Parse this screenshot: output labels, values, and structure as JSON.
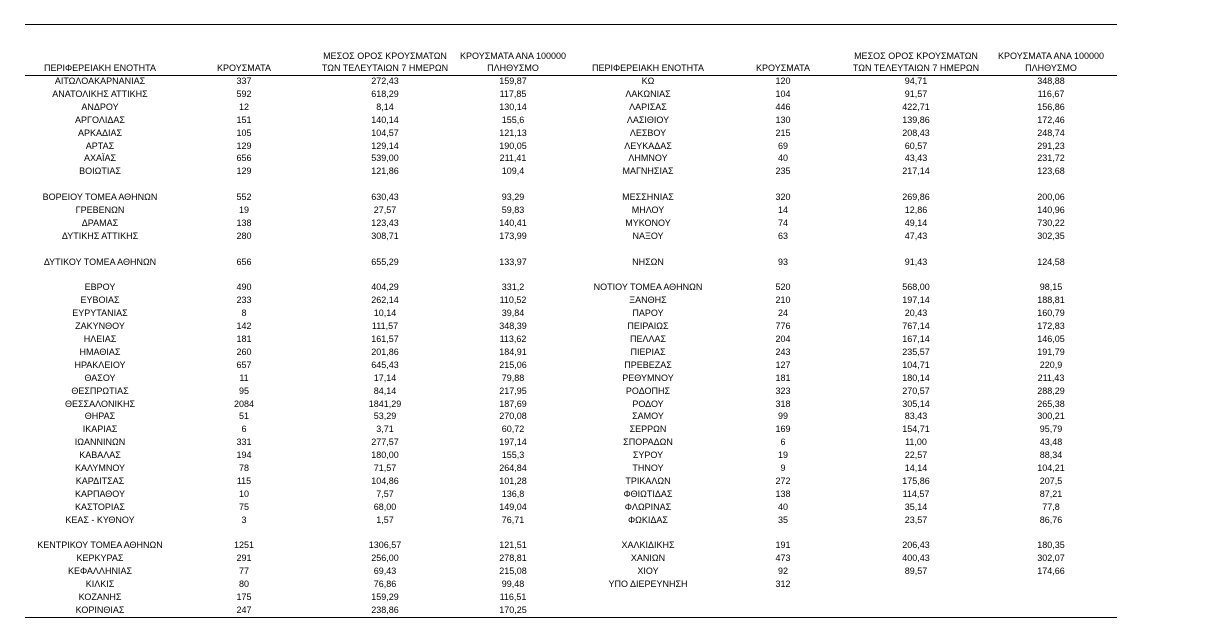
{
  "left": {
    "headers": [
      [
        "ΠΕΡΙΦΕΡΕΙΑΚΗ ΕΝΟΤΗΤΑ"
      ],
      [
        "ΚΡΟΥΣΜΑΤΑ"
      ],
      [
        "ΜΕΣΟΣ ΟΡΟΣ ΚΡΟΥΣΜΑΤΩΝ",
        "ΤΩΝ ΤΕΛΕΥΤΑΙΩΝ 7 ΗΜΕΡΩΝ"
      ],
      [
        "ΚΡΟΥΣΜΑΤΑ ΑΝΑ 100000",
        "ΠΛΗΘΥΣΜΟ"
      ]
    ],
    "groups": [
      [
        [
          "ΑΙΤΩΛΟΑΚΑΡΝΑΝΙΑΣ",
          "337",
          "272,43",
          "159,87"
        ],
        [
          "ΑΝΑΤΟΛΙΚΗΣ ΑΤΤΙΚΗΣ",
          "592",
          "618,29",
          "117,85"
        ],
        [
          "ΑΝΔΡΟΥ",
          "12",
          "8,14",
          "130,14"
        ],
        [
          "ΑΡΓΟΛΙΔΑΣ",
          "151",
          "140,14",
          "155,6"
        ],
        [
          "ΑΡΚΑΔΙΑΣ",
          "105",
          "104,57",
          "121,13"
        ],
        [
          "ΑΡΤΑΣ",
          "129",
          "129,14",
          "190,05"
        ],
        [
          "ΑΧΑΪΑΣ",
          "656",
          "539,00",
          "211,41"
        ],
        [
          "ΒΟΙΩΤΙΑΣ",
          "129",
          "121,86",
          "109,4"
        ]
      ],
      [
        [
          "ΒΟΡΕΙΟΥ ΤΟΜΕΑ ΑΘΗΝΩΝ",
          "552",
          "630,43",
          "93,29"
        ],
        [
          "ΓΡΕΒΕΝΩΝ",
          "19",
          "27,57",
          "59,83"
        ],
        [
          "ΔΡΑΜΑΣ",
          "138",
          "123,43",
          "140,41"
        ],
        [
          "ΔΥΤΙΚΗΣ ΑΤΤΙΚΗΣ",
          "280",
          "308,71",
          "173,99"
        ]
      ],
      [
        [
          "ΔΥΤΙΚΟΥ ΤΟΜΕΑ ΑΘΗΝΩΝ",
          "656",
          "655,29",
          "133,97"
        ]
      ],
      [
        [
          "ΕΒΡΟΥ",
          "490",
          "404,29",
          "331,2"
        ],
        [
          "ΕΥΒΟΙΑΣ",
          "233",
          "262,14",
          "110,52"
        ],
        [
          "ΕΥΡΥΤΑΝΙΑΣ",
          "8",
          "10,14",
          "39,84"
        ],
        [
          "ΖΑΚΥΝΘΟΥ",
          "142",
          "111,57",
          "348,39"
        ],
        [
          "ΗΛΕΙΑΣ",
          "181",
          "161,57",
          "113,62"
        ],
        [
          "ΗΜΑΘΙΑΣ",
          "260",
          "201,86",
          "184,91"
        ],
        [
          "ΗΡΑΚΛΕΙΟΥ",
          "657",
          "645,43",
          "215,06"
        ],
        [
          "ΘΑΣΟΥ",
          "11",
          "17,14",
          "79,88"
        ],
        [
          "ΘΕΣΠΡΩΤΙΑΣ",
          "95",
          "84,14",
          "217,95"
        ],
        [
          "ΘΕΣΣΑΛΟΝΙΚΗΣ",
          "2084",
          "1841,29",
          "187,69"
        ],
        [
          "ΘΗΡΑΣ",
          "51",
          "53,29",
          "270,08"
        ],
        [
          "ΙΚΑΡΙΑΣ",
          "6",
          "3,71",
          "60,72"
        ],
        [
          "ΙΩΑΝΝΙΝΩΝ",
          "331",
          "277,57",
          "197,14"
        ],
        [
          "ΚΑΒΑΛΑΣ",
          "194",
          "180,00",
          "155,3"
        ],
        [
          "ΚΑΛΥΜΝΟΥ",
          "78",
          "71,57",
          "264,84"
        ],
        [
          "ΚΑΡΔΙΤΣΑΣ",
          "115",
          "104,86",
          "101,28"
        ],
        [
          "ΚΑΡΠΑΘΟΥ",
          "10",
          "7,57",
          "136,8"
        ],
        [
          "ΚΑΣΤΟΡΙΑΣ",
          "75",
          "68,00",
          "149,04"
        ],
        [
          "ΚΕΑΣ - ΚΥΘΝΟΥ",
          "3",
          "1,57",
          "76,71"
        ]
      ],
      [
        [
          "ΚΕΝΤΡΙΚΟΥ ΤΟΜΕΑ ΑΘΗΝΩΝ",
          "1251",
          "1306,57",
          "121,51"
        ],
        [
          "ΚΕΡΚΥΡΑΣ",
          "291",
          "256,00",
          "278,81"
        ],
        [
          "ΚΕΦΑΛΛΗΝΙΑΣ",
          "77",
          "69,43",
          "215,08"
        ],
        [
          "ΚΙΛΚΙΣ",
          "80",
          "76,86",
          "99,48"
        ],
        [
          "ΚΟΖΑΝΗΣ",
          "175",
          "159,29",
          "116,51"
        ],
        [
          "ΚΟΡΙΝΘΙΑΣ",
          "247",
          "238,86",
          "170,25"
        ]
      ]
    ]
  },
  "right": {
    "headers": [
      [
        "ΠΕΡΙΦΕΡΕΙΑΚΗ ΕΝΟΤΗΤΑ"
      ],
      [
        "ΚΡΟΥΣΜΑΤΑ"
      ],
      [
        "ΜΕΣΟΣ ΟΡΟΣ ΚΡΟΥΣΜΑΤΩΝ",
        "ΤΩΝ ΤΕΛΕΥΤΑΙΩΝ 7 ΗΜΕΡΩΝ"
      ],
      [
        "ΚΡΟΥΣΜΑΤΑ ΑΝΑ 100000",
        "ΠΛΗΘΥΣΜΟ"
      ]
    ],
    "groups": [
      [
        [
          "ΚΩ",
          "120",
          "94,71",
          "348,88"
        ],
        [
          "ΛΑΚΩΝΙΑΣ",
          "104",
          "91,57",
          "116,67"
        ],
        [
          "ΛΑΡΙΣΑΣ",
          "446",
          "422,71",
          "156,86"
        ],
        [
          "ΛΑΣΙΘΙΟΥ",
          "130",
          "139,86",
          "172,46"
        ],
        [
          "ΛΕΣΒΟΥ",
          "215",
          "208,43",
          "248,74"
        ],
        [
          "ΛΕΥΚΑΔΑΣ",
          "69",
          "60,57",
          "291,23"
        ],
        [
          "ΛΗΜΝΟΥ",
          "40",
          "43,43",
          "231,72"
        ],
        [
          "ΜΑΓΝΗΣΙΑΣ",
          "235",
          "217,14",
          "123,68"
        ]
      ],
      [
        [
          "ΜΕΣΣΗΝΙΑΣ",
          "320",
          "269,86",
          "200,06"
        ],
        [
          "ΜΗΛΟΥ",
          "14",
          "12,86",
          "140,96"
        ],
        [
          "ΜΥΚΟΝΟΥ",
          "74",
          "49,14",
          "730,22"
        ],
        [
          "ΝΑΞΟΥ",
          "63",
          "47,43",
          "302,35"
        ]
      ],
      [
        [
          "ΝΗΣΩΝ",
          "93",
          "91,43",
          "124,58"
        ]
      ],
      [
        [
          "ΝΟΤΙΟΥ ΤΟΜΕΑ ΑΘΗΝΩΝ",
          "520",
          "568,00",
          "98,15"
        ],
        [
          "ΞΑΝΘΗΣ",
          "210",
          "197,14",
          "188,81"
        ],
        [
          "ΠΑΡΟΥ",
          "24",
          "20,43",
          "160,79"
        ],
        [
          "ΠΕΙΡΑΙΩΣ",
          "776",
          "767,14",
          "172,83"
        ],
        [
          "ΠΕΛΛΑΣ",
          "204",
          "167,14",
          "146,05"
        ],
        [
          "ΠΙΕΡΙΑΣ",
          "243",
          "235,57",
          "191,79"
        ],
        [
          "ΠΡΕΒΕΖΑΣ",
          "127",
          "104,71",
          "220,9"
        ],
        [
          "ΡΕΘΥΜΝΟΥ",
          "181",
          "180,14",
          "211,43"
        ],
        [
          "ΡΟΔΟΠΗΣ",
          "323",
          "270,57",
          "288,29"
        ],
        [
          "ΡΟΔΟΥ",
          "318",
          "305,14",
          "265,38"
        ],
        [
          "ΣΑΜΟΥ",
          "99",
          "83,43",
          "300,21"
        ],
        [
          "ΣΕΡΡΩΝ",
          "169",
          "154,71",
          "95,79"
        ],
        [
          "ΣΠΟΡΑΔΩΝ",
          "6",
          "11,00",
          "43,48"
        ],
        [
          "ΣΥΡΟΥ",
          "19",
          "22,57",
          "88,34"
        ],
        [
          "ΤΗΝΟΥ",
          "9",
          "14,14",
          "104,21"
        ],
        [
          "ΤΡΙΚΑΛΩΝ",
          "272",
          "175,86",
          "207,5"
        ],
        [
          "ΦΘΙΩΤΙΔΑΣ",
          "138",
          "114,57",
          "87,21"
        ],
        [
          "ΦΛΩΡΙΝΑΣ",
          "40",
          "35,14",
          "77,8"
        ],
        [
          "ΦΩΚΙΔΑΣ",
          "35",
          "23,57",
          "86,76"
        ]
      ],
      [
        [
          "ΧΑΛΚΙΔΙΚΗΣ",
          "191",
          "206,43",
          "180,35"
        ],
        [
          "ΧΑΝΙΩΝ",
          "473",
          "400,43",
          "302,07"
        ],
        [
          "ΧΙΟΥ",
          "92",
          "89,57",
          "174,66"
        ],
        [
          "ΥΠΟ ΔΙΕΡΕΥΝΗΣΗ",
          "312"
        ]
      ]
    ]
  }
}
